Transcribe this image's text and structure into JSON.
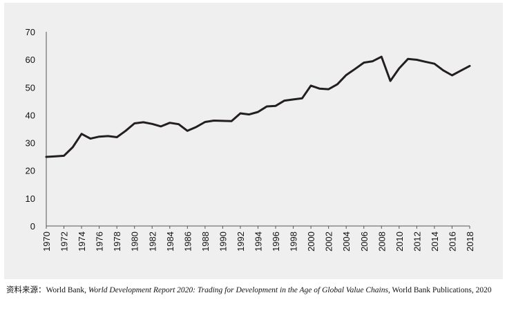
{
  "chart_data": {
    "type": "line",
    "title": "",
    "xlabel": "",
    "ylabel": "",
    "ylim": [
      0,
      70
    ],
    "yticks": [
      "0",
      "10",
      "20",
      "30",
      "40",
      "50",
      "60",
      "70"
    ],
    "xlim": [
      1970,
      2018
    ],
    "xticks": [
      "1970",
      "1972",
      "1974",
      "1976",
      "1978",
      "1980",
      "1982",
      "1984",
      "1986",
      "1988",
      "1990",
      "1992",
      "1994",
      "1996",
      "1998",
      "2000",
      "2002",
      "2004",
      "2006",
      "2008",
      "2010",
      "2012",
      "2014",
      "2016",
      "2018"
    ],
    "grid": false,
    "line_color": "#231f20",
    "series": [
      {
        "x": [
          1970,
          1971,
          1972,
          1973,
          1974,
          1975,
          1976,
          1977,
          1978,
          1979,
          1980,
          1981,
          1982,
          1983,
          1984,
          1985,
          1986,
          1987,
          1988,
          1989,
          1990,
          1991,
          1992,
          1993,
          1994,
          1995,
          1996,
          1997,
          1998,
          1999,
          2000,
          2001,
          2002,
          2003,
          2004,
          2005,
          2006,
          2007,
          2008,
          2009,
          2010,
          2011,
          2012,
          2013,
          2014,
          2015,
          2016,
          2017,
          2018
        ],
        "values": [
          24.9,
          25.1,
          25.3,
          28.4,
          33.2,
          31.5,
          32.2,
          32.4,
          32.0,
          34.3,
          37.0,
          37.4,
          36.8,
          35.9,
          37.2,
          36.7,
          34.3,
          35.7,
          37.5,
          38.0,
          37.9,
          37.8,
          40.6,
          40.2,
          41.1,
          43.1,
          43.3,
          45.2,
          45.6,
          46.0,
          50.6,
          49.5,
          49.3,
          51.1,
          54.4,
          56.6,
          58.9,
          59.4,
          61.0,
          52.3,
          56.8,
          60.2,
          59.9,
          59.2,
          58.5,
          56.1,
          54.3,
          56.0,
          57.7
        ]
      }
    ]
  },
  "source": {
    "prefix": "资料来源：World Bank, ",
    "title": "World Development Report 2020: Trading for Development in the Age of Global Value Chains",
    "suffix": ", World Bank Publications, 2020"
  }
}
